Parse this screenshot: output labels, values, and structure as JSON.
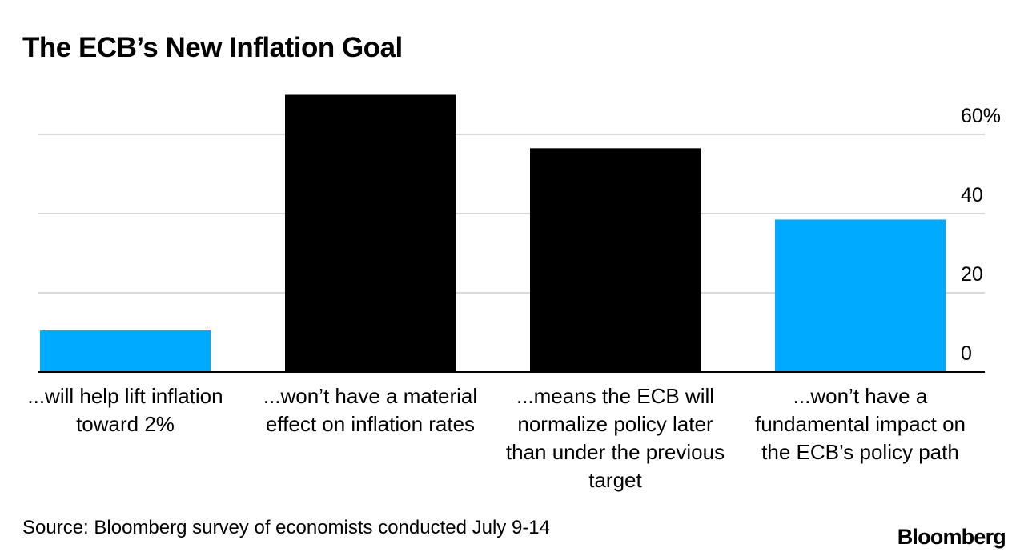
{
  "chart_data": {
    "type": "bar",
    "title": "The ECB’s New Inflation Goal",
    "categories": [
      "...will help lift inflation toward 2%",
      "...won’t have a material effect on inflation rates",
      "...means the ECB will normalize policy later than under the previous target",
      "...won’t have a fundamental impact on the ECB’s policy path"
    ],
    "values": [
      10.5,
      70,
      56.5,
      38.5
    ],
    "bar_colors": [
      "#00aaff",
      "#000000",
      "#000000",
      "#00aaff"
    ],
    "yticks": [
      "0",
      "20",
      "40",
      "60%"
    ],
    "ytick_values": [
      0,
      20,
      40,
      60
    ],
    "ylim": [
      0,
      70
    ],
    "grid": true,
    "y_axis_side": "right"
  },
  "footer": {
    "source": "Source: Bloomberg survey of economists conducted July 9-14",
    "brand": "Bloomberg"
  }
}
